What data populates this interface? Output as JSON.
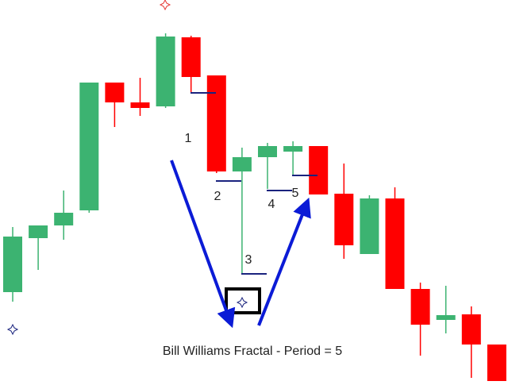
{
  "chart_data": {
    "type": "candlestick",
    "title": "Bill Williams Fractal - Period = 5",
    "open": [
      112,
      180,
      196,
      215,
      376,
      351,
      346,
      433,
      385,
      264,
      282,
      289,
      296,
      236,
      160,
      230,
      116,
      77,
      84,
      46
    ],
    "high": [
      194,
      196,
      240,
      376,
      376,
      382,
      438,
      435,
      385,
      294,
      300,
      302,
      296,
      274,
      234,
      244,
      124,
      120,
      94,
      46
    ],
    "low": [
      100,
      140,
      178,
      212,
      320,
      334,
      344,
      364,
      262,
      135,
      242,
      260,
      235,
      154,
      160,
      116,
      32,
      60,
      4,
      0
    ],
    "close": [
      182,
      196,
      212,
      376,
      351,
      344,
      434,
      383,
      264,
      282,
      296,
      296,
      235,
      171,
      230,
      116,
      71,
      83,
      46,
      0
    ],
    "up_color": "#3cb371",
    "down_color": "#ff0000",
    "ylim": [
      0,
      480
    ],
    "annotations": [
      "1",
      "2",
      "3",
      "4",
      "5"
    ]
  }
}
